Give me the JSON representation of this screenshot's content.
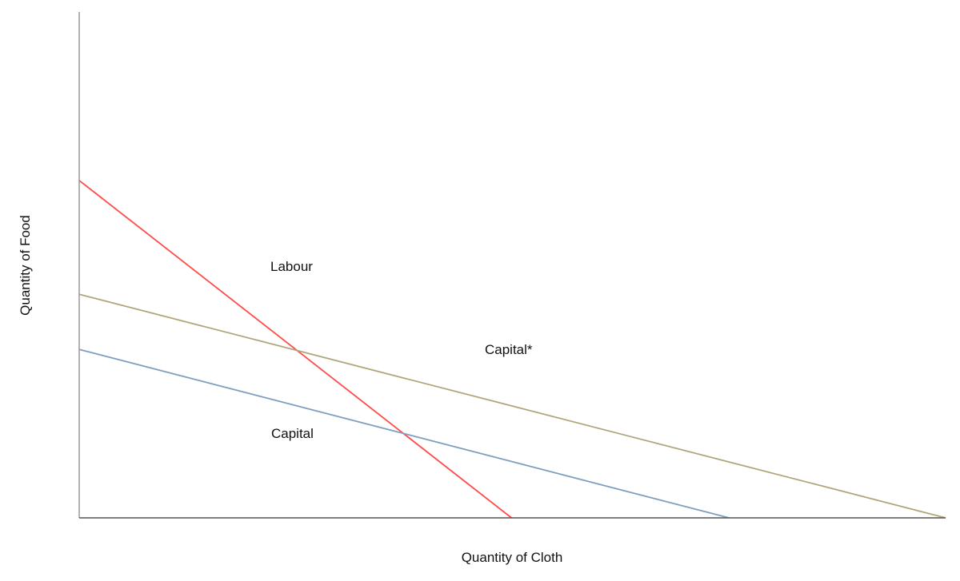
{
  "chart_data": {
    "type": "line",
    "title": "",
    "xlabel": "Quantity of Cloth",
    "ylabel": "Quantity of Food",
    "xlim": [
      0,
      100
    ],
    "ylim": [
      0,
      100
    ],
    "grid": false,
    "legend": "none",
    "series": [
      {
        "name": "Labour",
        "color": "#ff4a4a",
        "x": [
          0,
          49.9
        ],
        "y": [
          66.7,
          0
        ]
      },
      {
        "name": "Capital*",
        "color": "#b0a67a",
        "x": [
          0,
          100
        ],
        "y": [
          44.2,
          0
        ]
      },
      {
        "name": "Capital",
        "color": "#7f9fc0",
        "x": [
          0,
          75
        ],
        "y": [
          33.3,
          0
        ]
      }
    ]
  }
}
